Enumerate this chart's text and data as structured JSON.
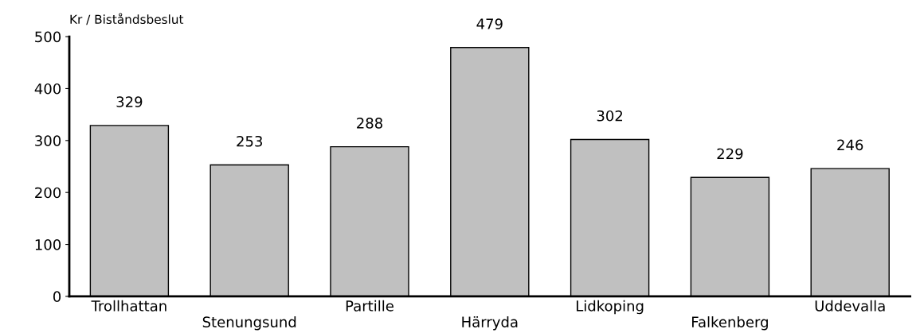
{
  "chart_data": {
    "type": "bar",
    "ylabel": "Kr / Biståndsbeslut",
    "categories": [
      "Trollhattan",
      "Stenungsund",
      "Partille",
      "Härryda",
      "Lidkoping",
      "Falkenberg",
      "Uddevalla"
    ],
    "values": [
      329,
      253,
      288,
      479,
      302,
      229,
      246
    ],
    "color": "#c0c0c0",
    "ylim": [
      0,
      500
    ],
    "yticks": [
      0,
      100,
      200,
      300,
      400,
      500
    ],
    "data_labels": true,
    "grid": false,
    "legend": false
  }
}
